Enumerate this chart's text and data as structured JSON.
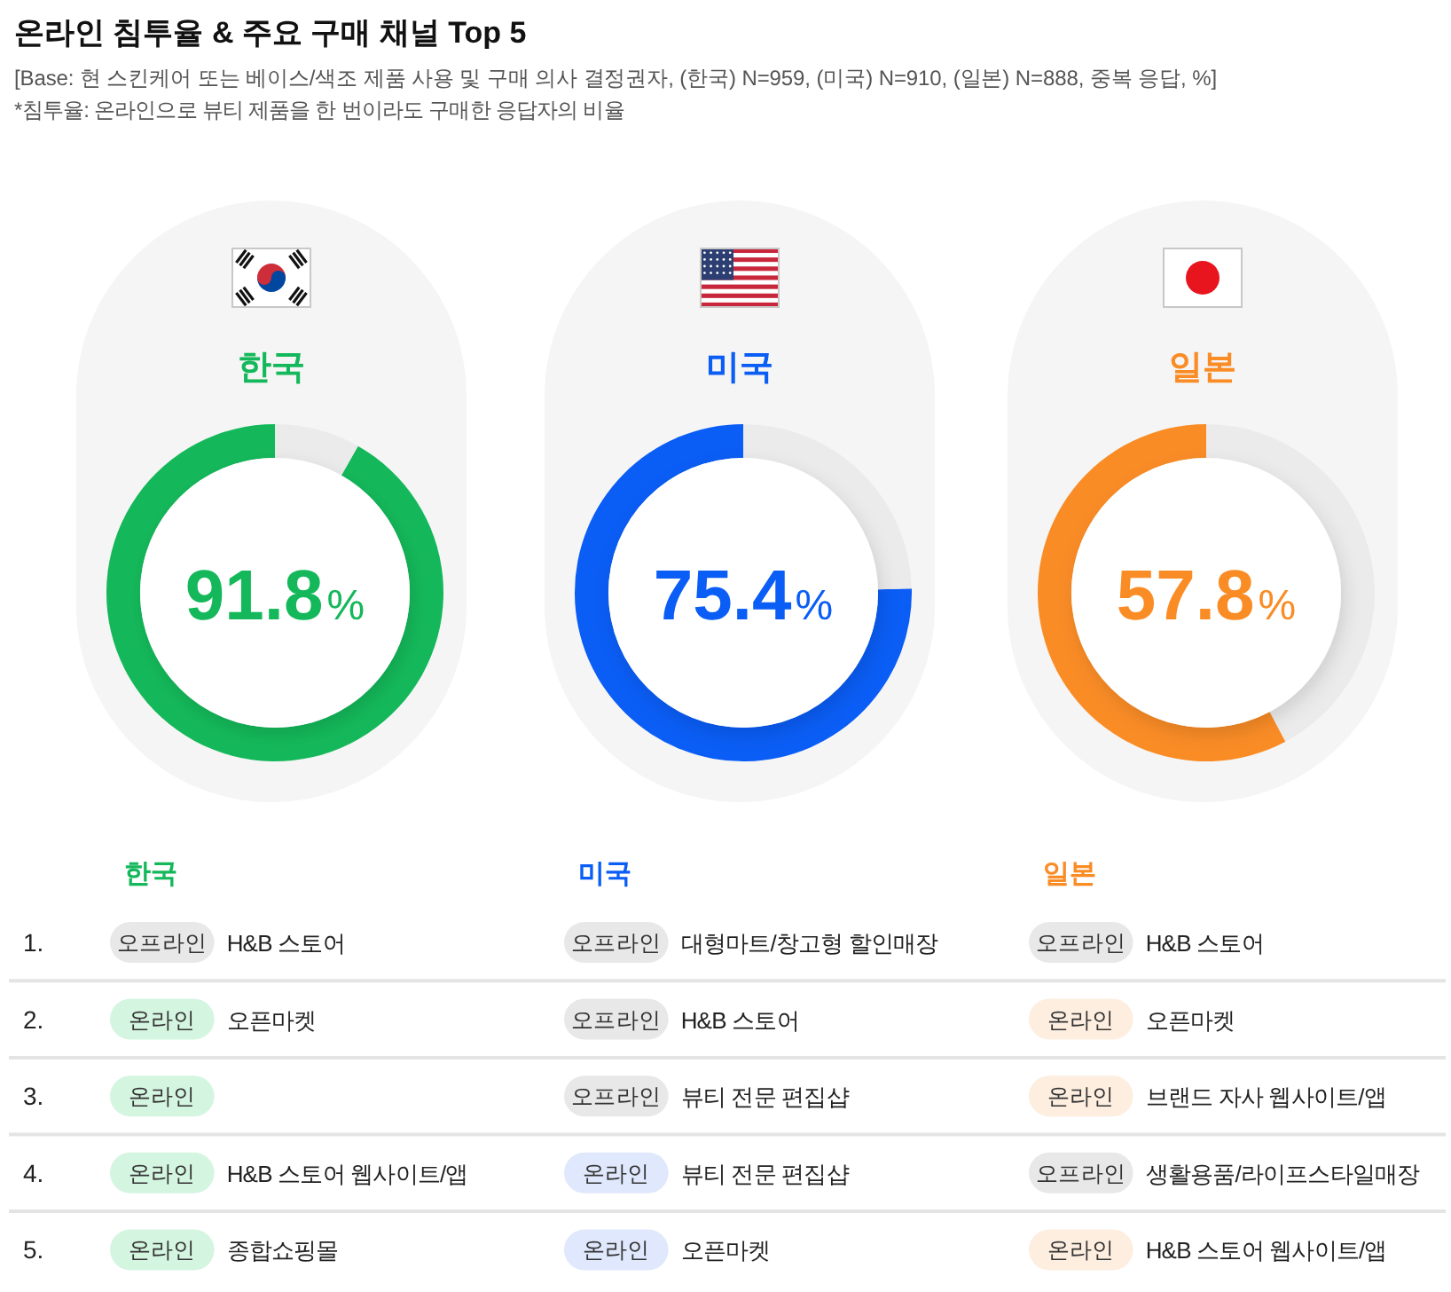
{
  "chart_data": [
    {
      "type": "other",
      "title": "온라인 침투율 & 주요 구매 채널 Top 5",
      "subtitle": "[Base: 현 스킨케어 또는 베이스/색조 제품 사용 및 구매 의사 결정권자, (한국) N=959, (미국) N=910, (일본) N=888, 중복 응답, %]",
      "annotations": [
        "*침투율: 온라인으로 뷰티 제품을 한 번이라도 구매한 응답자의 비율"
      ]
    },
    {
      "type": "donut",
      "title": "한국",
      "categories": [
        null,
        null
      ],
      "values": [
        91.8,
        8.2
      ],
      "colors": [
        "#14b85a",
        "#ebebeb"
      ],
      "value_labels": [
        "91.8%",
        null
      ]
    },
    {
      "type": "donut",
      "title": "미국",
      "categories": [
        null,
        null
      ],
      "values": [
        75.4,
        24.6
      ],
      "colors": [
        "#0a5df5",
        "#ebebeb"
      ],
      "value_labels": [
        "75.4%",
        null
      ]
    },
    {
      "type": "donut",
      "title": "일본",
      "categories": [
        null,
        null
      ],
      "values": [
        57.8,
        42.2
      ],
      "colors": [
        "#fa8c26",
        "#ebebeb"
      ],
      "value_labels": [
        "57.8%",
        null
      ]
    },
    {
      "type": "heatmap",
      "categories": [
        "한국",
        null,
        "미국",
        null,
        "일본",
        null
      ],
      "y_categories": [
        "1.",
        "2.",
        "3.",
        "4.",
        "5."
      ],
      "cells": [
        [
          null,
          null,
          null,
          null,
          null,
          null
        ],
        [
          null,
          null,
          null,
          null,
          null,
          null
        ],
        [
          null,
          null,
          null,
          null,
          null,
          null
        ],
        [
          null,
          null,
          null,
          null,
          null,
          null
        ],
        [
          null,
          null,
          null,
          null,
          null,
          null
        ]
      ],
      "cell_labels": [
        [
          "오프라인",
          "H&B 스토어",
          "오프라인",
          "대형마트/창고형 할인매장",
          "오프라인",
          "H&B 스토어"
        ],
        [
          "온라인",
          "오픈마켓",
          "오프라인",
          "H&B 스토어",
          "온라인",
          "오픈마켓"
        ],
        [
          "온라인",
          null,
          "오프라인",
          "뷰티 전문 편집샵",
          "온라인",
          "브랜드 자사 웹사이트/앱"
        ],
        [
          "온라인",
          "H&B 스토어 웹사이트/앱",
          "온라인",
          "뷰티 전문 편집샵",
          "오프라인",
          "생활용품/라이프스타일매장"
        ],
        [
          "온라인",
          "종합쇼핑몰",
          "온라인",
          "오픈마켓",
          "온라인",
          "H&B 스토어 웹사이트/앱"
        ]
      ],
      "colors": [
        [
          "#e8e8e8",
          null,
          "#e8e8e8",
          null,
          "#e8e8e8",
          null
        ],
        [
          "#d4f5e0",
          null,
          "#e8e8e8",
          null,
          "#fdeee0",
          null
        ],
        [
          "#d4f5e0",
          null,
          "#e8e8e8",
          null,
          "#fdeee0",
          null
        ],
        [
          "#d4f5e0",
          null,
          "#dfe8fc",
          null,
          "#e8e8e8",
          null
        ],
        [
          "#d4f5e0",
          null,
          "#dfe8fc",
          null,
          "#fdeee0",
          null
        ]
      ]
    }
  ]
}
